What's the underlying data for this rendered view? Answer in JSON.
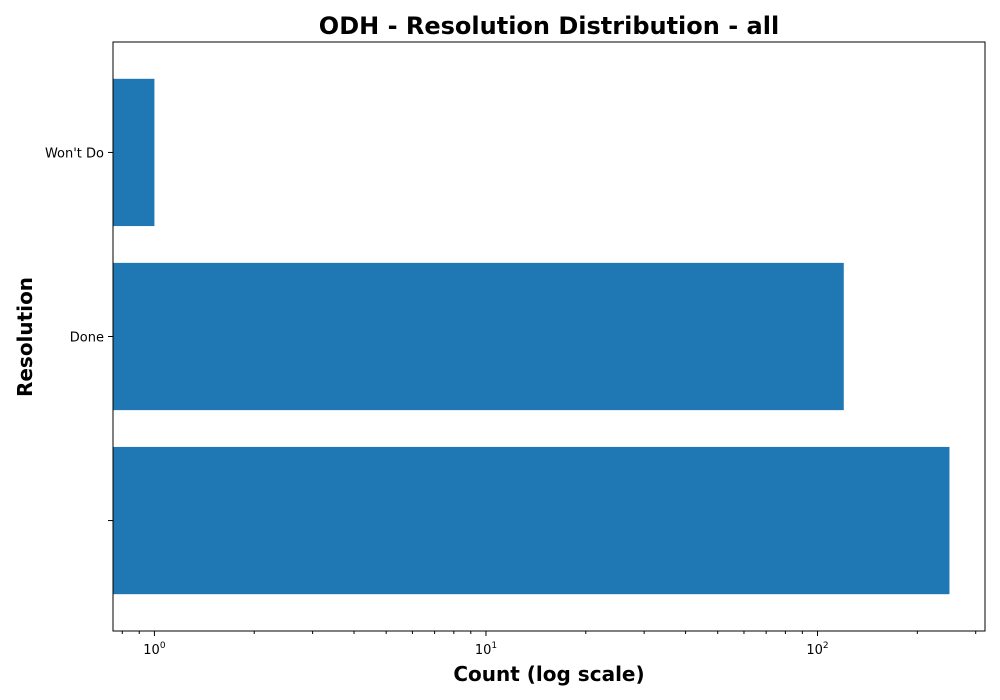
{
  "chart_data": {
    "type": "bar",
    "orientation": "horizontal",
    "title": "ODH - Resolution Distribution - all",
    "xlabel": "Count (log scale)",
    "ylabel": "Resolution",
    "x_scale": "log",
    "xlim": [
      0.75,
      320
    ],
    "x_ticks": [
      {
        "value": 1,
        "base": "10",
        "exp": "0"
      },
      {
        "value": 10,
        "base": "10",
        "exp": "1"
      },
      {
        "value": 100,
        "base": "10",
        "exp": "2"
      }
    ],
    "categories": [
      "Won't Do",
      "Done",
      ""
    ],
    "values": [
      1,
      120,
      250
    ],
    "bar_color": "#1f77b4",
    "grid": false,
    "legend": "none"
  }
}
